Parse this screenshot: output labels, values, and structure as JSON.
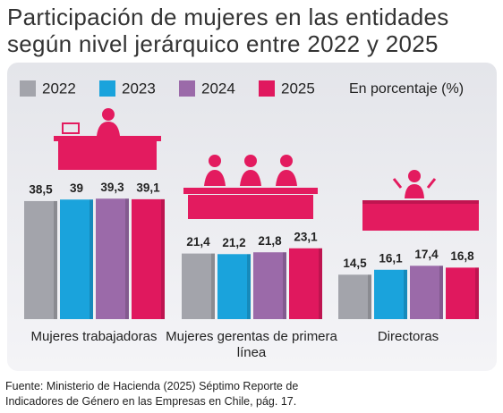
{
  "chart_data": {
    "type": "bar",
    "title": "Participación de mujeres en las entidades según nivel jerárquico entre  2022 y 2025",
    "unit_note": "En porcentaje (%)",
    "categories": [
      "Mujeres trabajadoras",
      "Mujeres gerentas de primera línea",
      "Directoras"
    ],
    "series": [
      {
        "name": "2022",
        "color": "#a3a4ab",
        "values": [
          38.5,
          21.4,
          14.5
        ],
        "value_labels": [
          "38,5",
          "21,4",
          "14,5"
        ]
      },
      {
        "name": "2023",
        "color": "#1aa3dc",
        "values": [
          39,
          21.2,
          16.1
        ],
        "value_labels": [
          "39",
          "21,2",
          "16,1"
        ]
      },
      {
        "name": "2024",
        "color": "#9b6aa9",
        "values": [
          39.3,
          21.8,
          17.4
        ],
        "value_labels": [
          "39,3",
          "21,8",
          "17,4"
        ]
      },
      {
        "name": "2025",
        "color": "#e0185e",
        "values": [
          39.1,
          23.1,
          16.8
        ],
        "value_labels": [
          "39,1",
          "23,1",
          "16,8"
        ]
      }
    ],
    "source": "Fuente: Ministerio de Hacienda (2025) Séptimo Reporte de Indicadores de Género en las Empresas en Chile, pág. 17."
  }
}
